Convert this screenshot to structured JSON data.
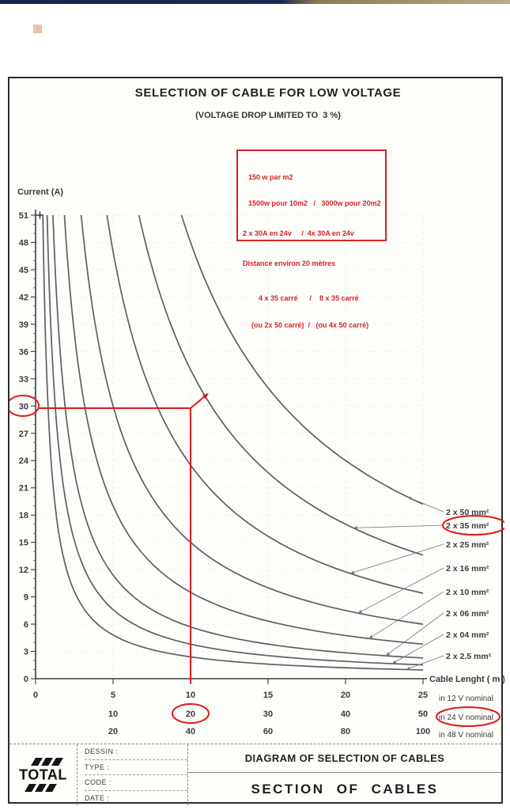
{
  "chart_data": {
    "type": "line",
    "title": "SELECTION OF CABLE FOR LOW VOLTAGE",
    "subtitle": "(VOLTAGE DROP LIMITED TO  3 %)",
    "ylabel": "Current (A)",
    "xlabel": "Cable Lenght ( m )",
    "ylim": [
      0,
      51
    ],
    "xlim": [
      0,
      25
    ],
    "grid": "faint-dashed",
    "legend_position": "right",
    "y_ticks": [
      0,
      3,
      6,
      9,
      12,
      15,
      18,
      21,
      24,
      27,
      30,
      33,
      36,
      39,
      42,
      45,
      48,
      51
    ],
    "x_axis_rows": [
      {
        "label": "in 12 V nominal",
        "ticks": [
          0,
          5,
          10,
          15,
          20,
          25
        ]
      },
      {
        "label": "in 24 V nominal",
        "ticks": [
          10,
          20,
          30,
          40,
          50
        ]
      },
      {
        "label": "in 48 V nominal",
        "ticks": [
          20,
          40,
          60,
          80,
          100
        ]
      }
    ],
    "series": [
      {
        "name": "2 x 50 mm²",
        "il_product": 480,
        "points": [
          [
            9.4,
            51
          ],
          [
            10.6,
            45.2
          ],
          [
            12,
            40
          ],
          [
            13.6,
            35.4
          ],
          [
            15.3,
            31.3
          ],
          [
            17.3,
            27.7
          ],
          [
            19.6,
            24.5
          ],
          [
            22.1,
            21.7
          ],
          [
            25,
            19.2
          ]
        ]
      },
      {
        "name": "2 x 35 mm²",
        "il_product": 340,
        "points": [
          [
            6.7,
            51
          ],
          [
            7.9,
            43.2
          ],
          [
            9.3,
            36.6
          ],
          [
            11,
            31
          ],
          [
            12.9,
            26.3
          ],
          [
            15.3,
            22.3
          ],
          [
            18,
            18.9
          ],
          [
            21.3,
            16
          ],
          [
            25,
            13.6
          ]
        ]
      },
      {
        "name": "2 x 25 mm²",
        "il_product": 235,
        "points": [
          [
            4.6,
            51
          ],
          [
            5.7,
            41.3
          ],
          [
            7,
            33.4
          ],
          [
            8.7,
            27
          ],
          [
            10.7,
            21.9
          ],
          [
            13.3,
            17.7
          ],
          [
            16.4,
            14.4
          ],
          [
            20.2,
            11.6
          ],
          [
            25,
            9.4
          ]
        ]
      },
      {
        "name": "2 x 16 mm²",
        "il_product": 150,
        "points": [
          [
            2.9,
            51
          ],
          [
            3.8,
            39.1
          ],
          [
            5,
            29.9
          ],
          [
            6.6,
            22.8
          ],
          [
            8.6,
            17.5
          ],
          [
            11.2,
            13.4
          ],
          [
            14.7,
            10.2
          ],
          [
            19.2,
            7.8
          ],
          [
            25,
            6
          ]
        ]
      },
      {
        "name": "2 x 10 mm²",
        "il_product": 95,
        "points": [
          [
            1.9,
            51
          ],
          [
            2.6,
            37
          ],
          [
            3.6,
            26.7
          ],
          [
            4.9,
            19.3
          ],
          [
            6.8,
            13.9
          ],
          [
            9.4,
            10.1
          ],
          [
            13.1,
            7.3
          ],
          [
            18.1,
            5.3
          ],
          [
            25,
            3.8
          ]
        ]
      },
      {
        "name": "2 x 06 mm²",
        "il_product": 57,
        "points": [
          [
            1.1,
            51
          ],
          [
            1.7,
            34.5
          ],
          [
            2.4,
            23.5
          ],
          [
            3.6,
            15.9
          ],
          [
            5.3,
            10.8
          ],
          [
            7.8,
            7.3
          ],
          [
            11.5,
            5
          ],
          [
            16.9,
            3.4
          ],
          [
            25,
            2.3
          ]
        ]
      },
      {
        "name": "2 x 04 mm²",
        "il_product": 38,
        "points": [
          [
            0.8,
            51
          ],
          [
            1.2,
            32.8
          ],
          [
            1.8,
            21.1
          ],
          [
            2.8,
            13.6
          ],
          [
            4.3,
            8.8
          ],
          [
            6.7,
            5.7
          ],
          [
            10.4,
            3.7
          ],
          [
            16.1,
            2.4
          ],
          [
            25,
            1.5
          ]
        ]
      },
      {
        "name": "2 x 2.5 mm²",
        "il_product": 24,
        "points": [
          [
            0.5,
            51
          ],
          [
            0.8,
            31.2
          ],
          [
            1.3,
            18.9
          ],
          [
            2.1,
            11.5
          ],
          [
            3.4,
            7
          ],
          [
            5.7,
            4.2
          ],
          [
            9.3,
            2.6
          ],
          [
            15.3,
            1.6
          ],
          [
            25,
            1
          ]
        ]
      }
    ]
  },
  "annotations": {
    "color": "#dd1a1a",
    "note_box": {
      "lines": [
        "150 w par m2",
        "1500w pour 10m2   /   3000w pour 20m2",
        "2 x 30A en 24v     /  4x 30A en 24v",
        "Distance environ 20 mètres",
        "4 x 35 carré      /    8 x 35 carré",
        "(ou 2x 50 carré)  /   (ou 4x 50 carré)"
      ]
    },
    "circled_values": [
      "30",
      "20",
      "2 x 35 mm²",
      "in 24 V nominal"
    ],
    "trace": {
      "current_a": 30,
      "length_12v_m": 10,
      "points_to_curve": "2 x 35 mm²"
    }
  },
  "title_block": {
    "logo_text": "TOTAL",
    "fields": [
      "DESSIN :",
      "TYPE :",
      "CODE :",
      "DATE :"
    ],
    "doc_title": "DIAGRAM OF SELECTION OF CABLES",
    "doc_subtitle": "SECTION  OF  CABLES"
  }
}
